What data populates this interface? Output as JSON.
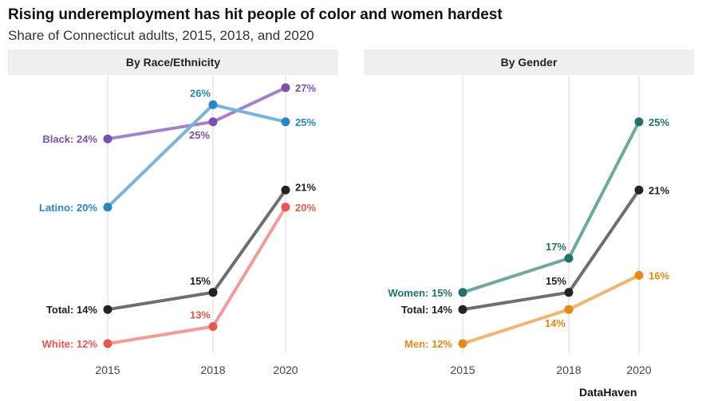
{
  "title": "Rising underemployment has hit people of color and women hardest",
  "subtitle": "Share of Connecticut adults, 2015, 2018, and 2020",
  "credit": "DataHaven",
  "chart_data": {
    "type": "line",
    "x": [
      2015,
      2018,
      2020
    ],
    "ylim": [
      11,
      28
    ],
    "grid": "vertical at each year",
    "panels": [
      {
        "title": "By Race/Ethnicity",
        "series": [
          {
            "name": "Black",
            "values": [
              24,
              25,
              27
            ],
            "color": "#7B52AB",
            "line_color": "#A283C6",
            "labels": [
              "Black: 24%",
              "25%",
              "27%"
            ],
            "label_pos": [
              "left",
              "below",
              "right"
            ]
          },
          {
            "name": "Latino",
            "values": [
              20,
              26,
              25
            ],
            "color": "#2A86BF",
            "line_color": "#7AB3DC",
            "labels": [
              "Latino: 20%",
              "26%",
              "25%"
            ],
            "label_pos": [
              "left",
              "above-left",
              "right"
            ]
          },
          {
            "name": "Total",
            "values": [
              14,
              15,
              21
            ],
            "color": "#222222",
            "line_color": "#6e6e6e",
            "labels": [
              "Total: 14%",
              "15%",
              "21%"
            ],
            "label_pos": [
              "left",
              "above-left",
              "right-up"
            ]
          },
          {
            "name": "White",
            "values": [
              12,
              13,
              20
            ],
            "color": "#E8574E",
            "line_color": "#F29C97",
            "labels": [
              "White: 12%",
              "13%",
              "20%"
            ],
            "label_pos": [
              "left",
              "above-left",
              "right"
            ]
          }
        ]
      },
      {
        "title": "By Gender",
        "series": [
          {
            "name": "Women",
            "values": [
              15,
              17,
              25
            ],
            "color": "#1F7467",
            "line_color": "#6FA89E",
            "labels": [
              "Women: 15%",
              "17%",
              "25%"
            ],
            "label_pos": [
              "left",
              "above-left",
              "right"
            ]
          },
          {
            "name": "Total",
            "values": [
              14,
              15,
              21
            ],
            "color": "#222222",
            "line_color": "#6e6e6e",
            "labels": [
              "Total: 14%",
              "15%",
              "21%"
            ],
            "label_pos": [
              "left",
              "above-left",
              "right"
            ]
          },
          {
            "name": "Men",
            "values": [
              12,
              14,
              16
            ],
            "color": "#E58A16",
            "line_color": "#EFB671",
            "labels": [
              "Men: 12%",
              "14%",
              "16%"
            ],
            "label_pos": [
              "left",
              "below-left",
              "right"
            ]
          }
        ]
      }
    ]
  }
}
